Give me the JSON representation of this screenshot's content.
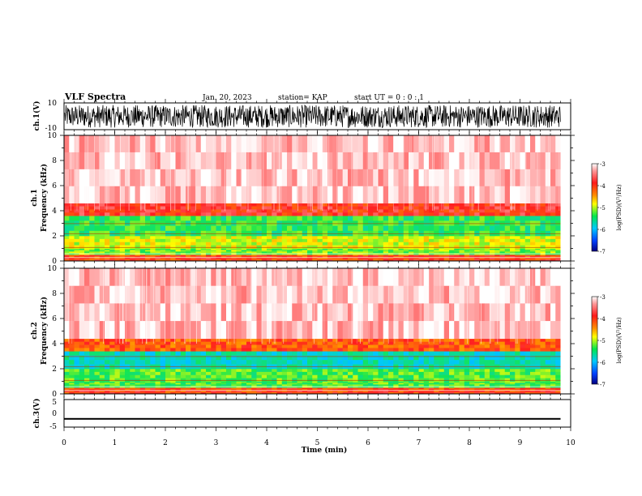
{
  "header": {
    "title": "VLF Spectra",
    "date": "Jan. 20, 2023",
    "station": "station= KAP",
    "start": "start  UT =   0 : 0 : 1"
  },
  "chart_data": [
    {
      "type": "line",
      "panel": "ch1-waveform",
      "ylabel": "ch.1(V)",
      "ylim": [
        -10,
        10
      ],
      "yticks": [
        "10",
        "-10"
      ],
      "xlim": [
        0,
        10
      ],
      "data_end_min": 9.8,
      "amplitude_range_v": [
        -10,
        10
      ]
    },
    {
      "type": "heatmap",
      "panel": "ch1-spectrogram",
      "ylabel": "ch.1",
      "ylabel2": "Frequency  (kHz)",
      "ylim": [
        0,
        10
      ],
      "yticks": [
        "0",
        "2",
        "4",
        "6",
        "8",
        "10"
      ],
      "xlim": [
        0,
        10
      ],
      "data_end_min": 9.8,
      "band_profile_khz": [
        {
          "f0": 0.0,
          "f1": 0.5,
          "level": -3.8
        },
        {
          "f0": 0.5,
          "f1": 1.0,
          "level": -4.7
        },
        {
          "f0": 1.0,
          "f1": 2.0,
          "level": -4.5
        },
        {
          "f0": 2.0,
          "f1": 3.6,
          "level": -4.9
        },
        {
          "f0": 3.6,
          "f1": 4.6,
          "level": -3.7
        },
        {
          "f0": 4.6,
          "f1": 10.0,
          "level": -3.2
        }
      ],
      "colorbar": {
        "label": "log(PSD)(V²/Hz)",
        "ticks": [
          "-3",
          "-4",
          "-5",
          "-6",
          "-7"
        ],
        "range": [
          -7,
          -3
        ]
      }
    },
    {
      "type": "heatmap",
      "panel": "ch2-spectrogram",
      "ylabel": "ch.2",
      "ylabel2": "Frequency  (kHz)",
      "ylim": [
        0,
        10
      ],
      "yticks": [
        "0",
        "2",
        "4",
        "6",
        "8",
        "10"
      ],
      "xlim": [
        0,
        10
      ],
      "data_end_min": 9.8,
      "band_profile_khz": [
        {
          "f0": 0.0,
          "f1": 0.5,
          "level": -3.8
        },
        {
          "f0": 0.5,
          "f1": 1.0,
          "level": -4.8
        },
        {
          "f0": 1.0,
          "f1": 2.0,
          "level": -4.8
        },
        {
          "f0": 2.0,
          "f1": 3.4,
          "level": -5.2
        },
        {
          "f0": 3.4,
          "f1": 4.4,
          "level": -3.9
        },
        {
          "f0": 4.4,
          "f1": 10.0,
          "level": -3.2
        }
      ],
      "colorbar": {
        "label": "log(PSD)(V²/Hz)",
        "ticks": [
          "-3",
          "-4",
          "-5",
          "-6",
          "-7"
        ],
        "range": [
          -7,
          -3
        ]
      }
    },
    {
      "type": "line",
      "panel": "ch3-waveform",
      "ylabel": "ch.3(V)",
      "ylim": [
        -5,
        5
      ],
      "yticks": [
        "5",
        "0",
        "-5"
      ],
      "xlim": [
        0,
        10
      ],
      "data_end_min": 9.8,
      "amplitude_range_v": [
        -2.3,
        -1.7
      ]
    }
  ],
  "xaxis": {
    "label": "Time  (min)",
    "ticks": [
      "0",
      "1",
      "2",
      "3",
      "4",
      "5",
      "6",
      "7",
      "8",
      "9",
      "10"
    ]
  }
}
